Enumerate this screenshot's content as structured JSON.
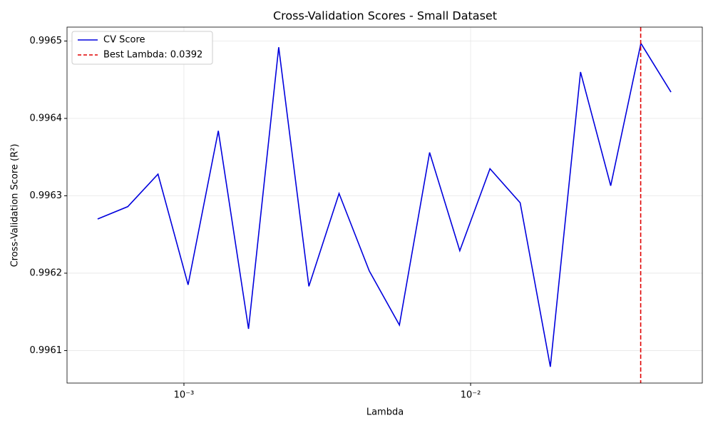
{
  "chart_data": {
    "type": "line",
    "title": "Cross-Validation Scores - Small Dataset",
    "x_label": "Lambda",
    "y_label": "Cross-Validation Score (R²)",
    "x_scale": "log",
    "grid": true,
    "legend": "upper left",
    "x": [
      0.0005,
      0.000637,
      0.000812,
      0.001034,
      0.001318,
      0.00168,
      0.002141,
      0.002728,
      0.003476,
      0.00443,
      0.005645,
      0.007194,
      0.009168,
      0.011683,
      0.014888,
      0.018973,
      0.024179,
      0.030813,
      0.039267,
      0.05
    ],
    "series": [
      {
        "name": "CV Score",
        "color": "#0000dd",
        "values": [
          0.99627,
          0.996286,
          0.996328,
          0.996185,
          0.996384,
          0.996128,
          0.996492,
          0.996183,
          0.996303,
          0.996203,
          0.996133,
          0.996356,
          0.996229,
          0.996335,
          0.996291,
          0.996079,
          0.99646,
          0.996313,
          0.996497,
          0.996434
        ]
      }
    ],
    "vline": {
      "x": 0.0392,
      "label": "Best Lambda: 0.0392",
      "color": "#e00000"
    },
    "xlim": [
      0.000391,
      0.0643
    ],
    "ylim": [
      0.996058,
      0.996518
    ],
    "xticks": [
      {
        "value": 0.001,
        "label": "10⁻³"
      },
      {
        "value": 0.01,
        "label": "10⁻²"
      }
    ],
    "yticks": [
      0.9961,
      0.9962,
      0.9963,
      0.9964,
      0.9965
    ]
  }
}
